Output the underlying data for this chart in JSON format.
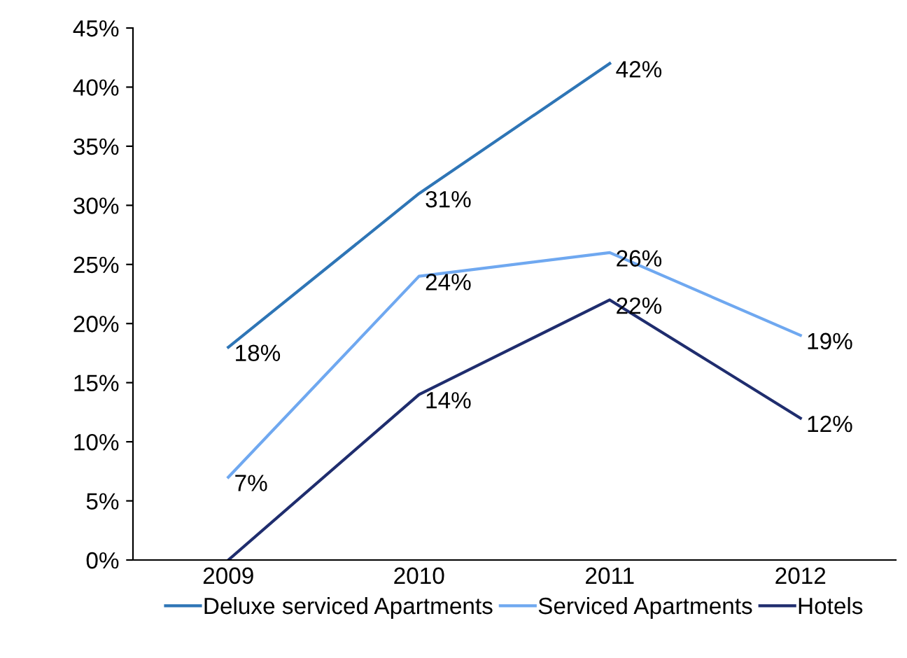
{
  "chart_data": {
    "type": "line",
    "categories": [
      "2009",
      "2010",
      "2011",
      "2012"
    ],
    "series": [
      {
        "name": "Deluxe serviced Apartments",
        "color": "#2e75b6",
        "values": [
          18,
          31,
          42,
          null
        ],
        "value_labels": [
          "18%",
          "31%",
          "42%",
          null
        ]
      },
      {
        "name": "Serviced Apartments",
        "color": "#6fa8f0",
        "values": [
          7,
          24,
          26,
          19
        ],
        "value_labels": [
          "7%",
          "24%",
          "26%",
          "19%"
        ]
      },
      {
        "name": "Hotels",
        "color": "#1f2d6e",
        "values": [
          0,
          14,
          22,
          12
        ],
        "value_labels": [
          null,
          "14%",
          "22%",
          "12%"
        ]
      }
    ],
    "ylim": [
      0,
      45
    ],
    "yticks": [
      {
        "value": 0,
        "label": "0%"
      },
      {
        "value": 5,
        "label": "5%"
      },
      {
        "value": 10,
        "label": "10%"
      },
      {
        "value": 15,
        "label": "15%"
      },
      {
        "value": 20,
        "label": "20%"
      },
      {
        "value": 25,
        "label": "25%"
      },
      {
        "value": 30,
        "label": "30%"
      },
      {
        "value": 35,
        "label": "35%"
      },
      {
        "value": 40,
        "label": "40%"
      },
      {
        "value": 45,
        "label": "45%"
      }
    ],
    "grid": false,
    "legend": "bottom",
    "marker": "none",
    "line_style": "solid"
  }
}
